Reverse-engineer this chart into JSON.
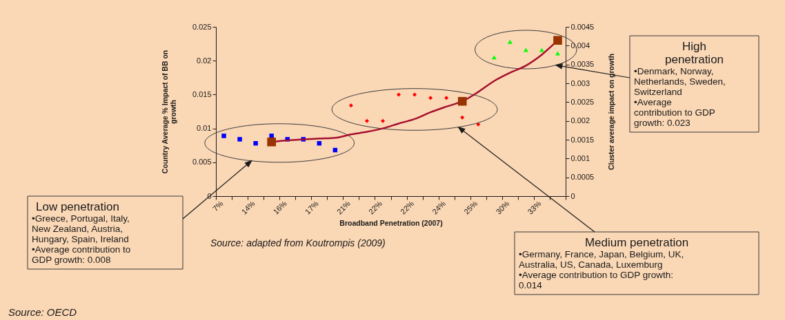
{
  "chart_data": {
    "type": "scatter",
    "xlabel": "Broadband Penetration (2007)",
    "ylabel": "Country Average % Impact of BB on growth",
    "y2label": "Cluster average impact on growth",
    "categories": [
      "7%",
      null,
      "14%",
      null,
      "16%",
      null,
      "17%",
      null,
      "21%",
      null,
      "22%",
      null,
      "22%",
      null,
      "24%",
      null,
      "25%",
      null,
      "30%",
      null,
      "33%",
      null
    ],
    "ylim": [
      0,
      0.025
    ],
    "yticks": [
      0,
      0.005,
      0.01,
      0.015,
      0.02,
      0.025
    ],
    "y2lim": [
      0,
      0.0045
    ],
    "y2ticks": [
      0,
      0.0005,
      0.001,
      0.0015,
      0.002,
      0.0025,
      0.003,
      0.0035,
      0.004,
      0.0045
    ],
    "series": [
      {
        "type": "scatter",
        "marker": "square",
        "color": "#0000ff",
        "values": [
          0.0089,
          0.0084,
          0.0078,
          0.0089,
          0.0084,
          0.0084,
          0.0078,
          0.0068,
          null,
          null,
          null,
          null,
          null,
          null,
          null,
          null,
          null,
          null,
          null,
          null,
          null,
          null
        ]
      },
      {
        "type": "scatter",
        "marker": "diamond",
        "color": "#ff0000",
        "values": [
          null,
          null,
          null,
          null,
          null,
          null,
          null,
          null,
          0.0134,
          0.0111,
          0.0111,
          0.015,
          0.015,
          0.0145,
          0.0145,
          0.0116,
          0.0106,
          null,
          null,
          null,
          null,
          null
        ]
      },
      {
        "type": "scatter",
        "marker": "triangle",
        "color": "#00ff00",
        "values": [
          null,
          null,
          null,
          null,
          null,
          null,
          null,
          null,
          null,
          null,
          null,
          null,
          null,
          null,
          null,
          null,
          null,
          0.0205,
          0.0228,
          0.0216,
          0.0216,
          0.0211
        ]
      },
      {
        "type": "line",
        "axis": "y2",
        "marker": "none",
        "line_style": "solid",
        "color": "#a50f2d",
        "values": [
          null,
          null,
          null,
          0.00144,
          0.00148,
          0.00151,
          0.00153,
          0.00155,
          0.00164,
          0.00171,
          0.0018,
          0.00193,
          0.00205,
          0.00223,
          0.00238,
          0.00252,
          0.00277,
          0.00306,
          0.00328,
          0.00347,
          0.00376,
          0.00414
        ]
      },
      {
        "type": "scatter",
        "axis": "y2",
        "marker": "square",
        "color": "#993300",
        "values": [
          null,
          null,
          null,
          0.00144,
          null,
          null,
          null,
          null,
          null,
          null,
          null,
          null,
          null,
          null,
          null,
          0.00252,
          null,
          null,
          null,
          null,
          null,
          0.00414
        ]
      }
    ],
    "annotations": [
      "Low penetration\n•Greece, Portugal, Italy, New Zealand, Austria, Hungary, Spain, Ireland\n•Average contribution to GDP growth: 0.008",
      "Medium penetration\n•Germany, France, Japan, Belgium, UK, Australia, US, Canada, Luxemburg\n•Average contribution to GDP growth: 0.014",
      "High penetration\n•Denmark, Norway, Netherlands, Sweden, Switzerland\n•Average contribution to GDP growth: 0.023",
      "Source: adapted from Koutrompis (2009)",
      "Source: OECD"
    ]
  }
}
